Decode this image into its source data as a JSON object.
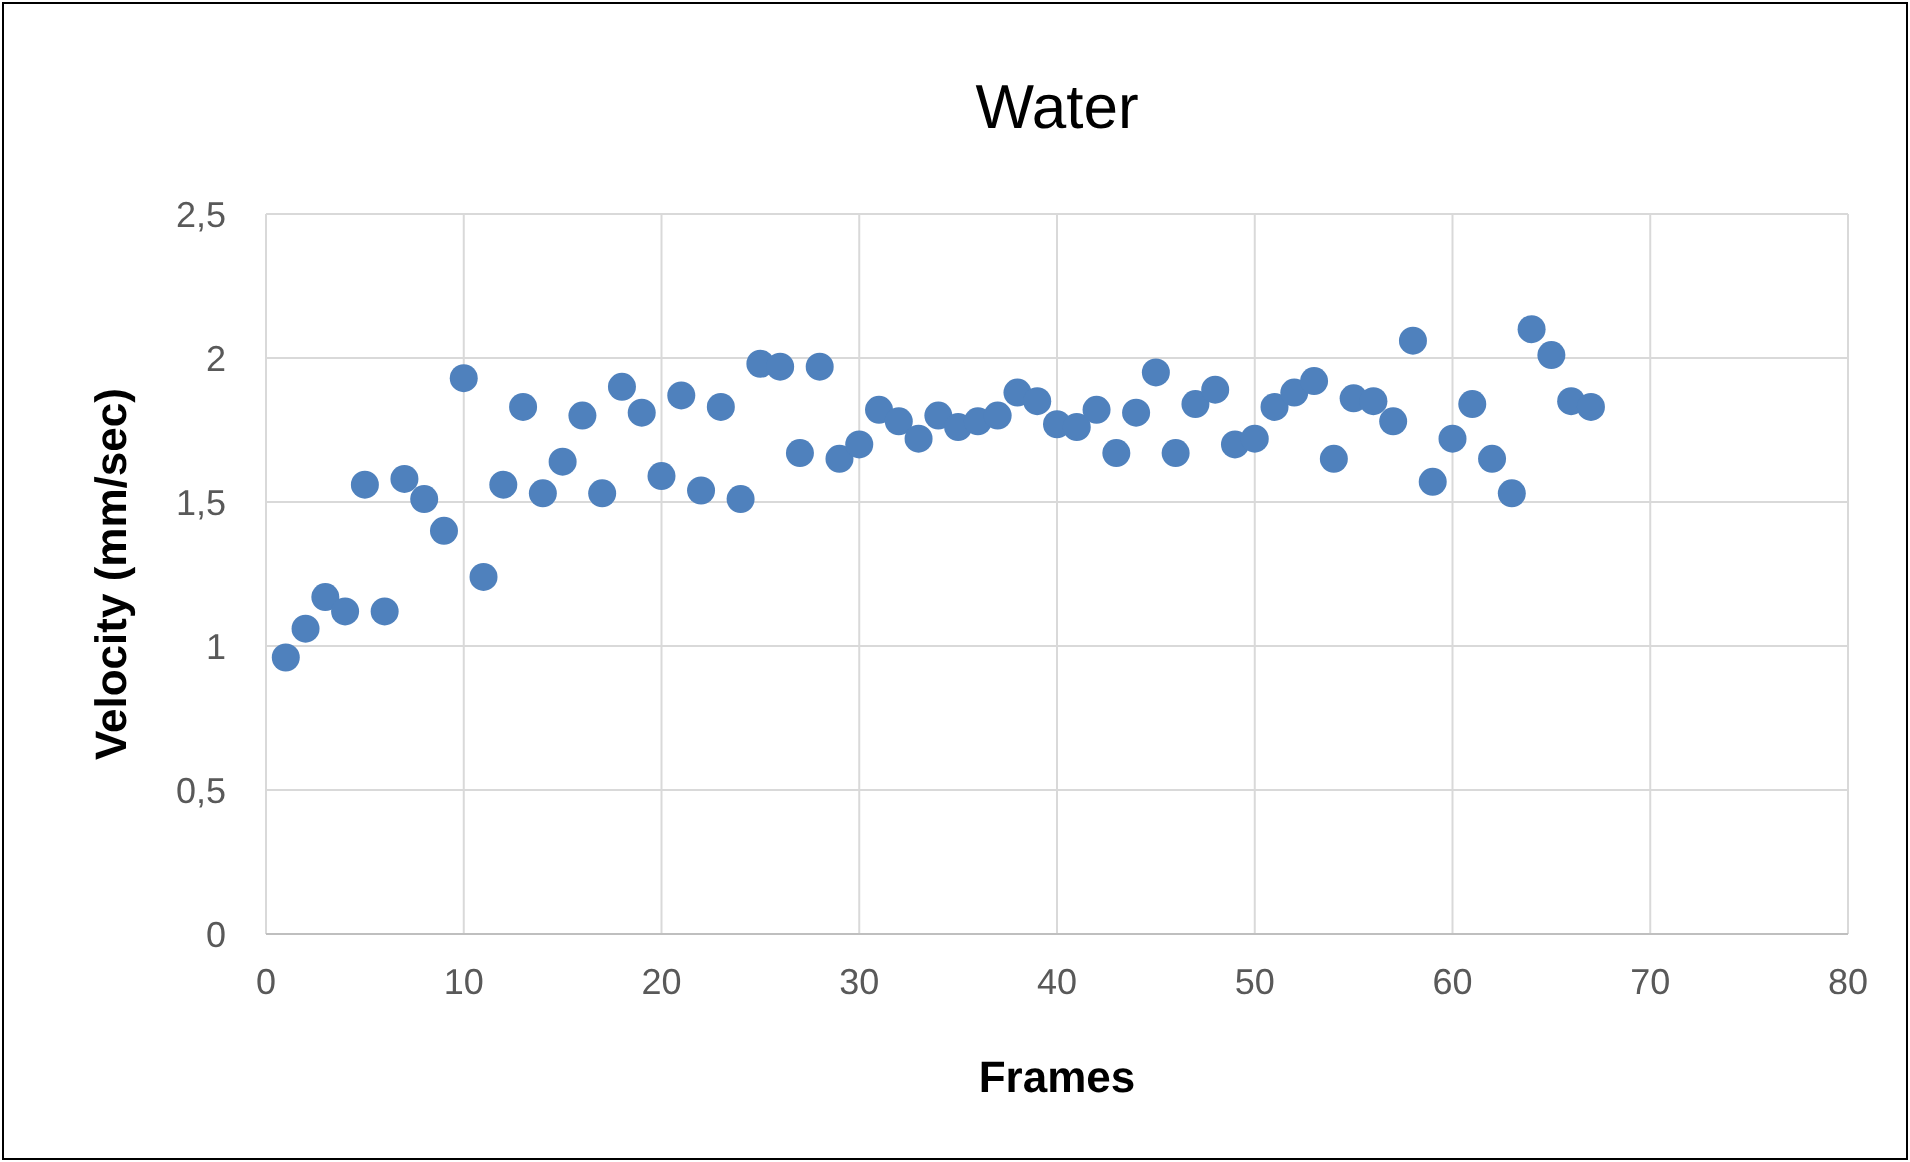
{
  "chart_data": {
    "type": "scatter",
    "title": "Water",
    "xlabel": "Frames",
    "ylabel": "Velocity (mm/sec)",
    "x": [
      1,
      2,
      3,
      4,
      5,
      6,
      7,
      8,
      9,
      10,
      11,
      12,
      13,
      14,
      15,
      16,
      17,
      18,
      19,
      20,
      21,
      22,
      23,
      24,
      25,
      26,
      27,
      28,
      29,
      30,
      31,
      32,
      33,
      34,
      35,
      36,
      37,
      38,
      39,
      40,
      41,
      42,
      43,
      44,
      45,
      46,
      47,
      48,
      49,
      50,
      51,
      52,
      53,
      54,
      55,
      56,
      57,
      58,
      59,
      60,
      61,
      62,
      63,
      64,
      65,
      66,
      67
    ],
    "series": [
      {
        "color": "#4f81bd",
        "values": [
          0.96,
          1.06,
          1.17,
          1.12,
          1.56,
          1.12,
          1.58,
          1.51,
          1.4,
          1.93,
          1.24,
          1.56,
          1.83,
          1.53,
          1.64,
          1.8,
          1.53,
          1.9,
          1.81,
          1.59,
          1.87,
          1.54,
          1.83,
          1.51,
          1.98,
          1.97,
          1.67,
          1.97,
          1.65,
          1.7,
          1.82,
          1.78,
          1.72,
          1.8,
          1.76,
          1.78,
          1.8,
          1.88,
          1.85,
          1.77,
          1.76,
          1.82,
          1.67,
          1.81,
          1.95,
          1.67,
          1.84,
          1.89,
          1.7,
          1.72,
          1.83,
          1.88,
          1.92,
          1.65,
          1.86,
          1.85,
          1.78,
          2.06,
          1.57,
          1.72,
          1.84,
          1.65,
          1.53,
          2.1,
          2.01,
          1.85,
          1.83
        ]
      }
    ],
    "xlim": [
      0,
      80
    ],
    "xticks": [
      0,
      10,
      20,
      30,
      40,
      50,
      60,
      70,
      80
    ],
    "ylim": [
      0,
      2.5
    ],
    "yticks": [
      0,
      {
        "value": 0.5,
        "label": "0,5"
      },
      1,
      {
        "value": 1.5,
        "label": "1,5"
      },
      2,
      {
        "value": 2.5,
        "label": "2,5"
      }
    ],
    "grid": true,
    "marker": "circle"
  }
}
